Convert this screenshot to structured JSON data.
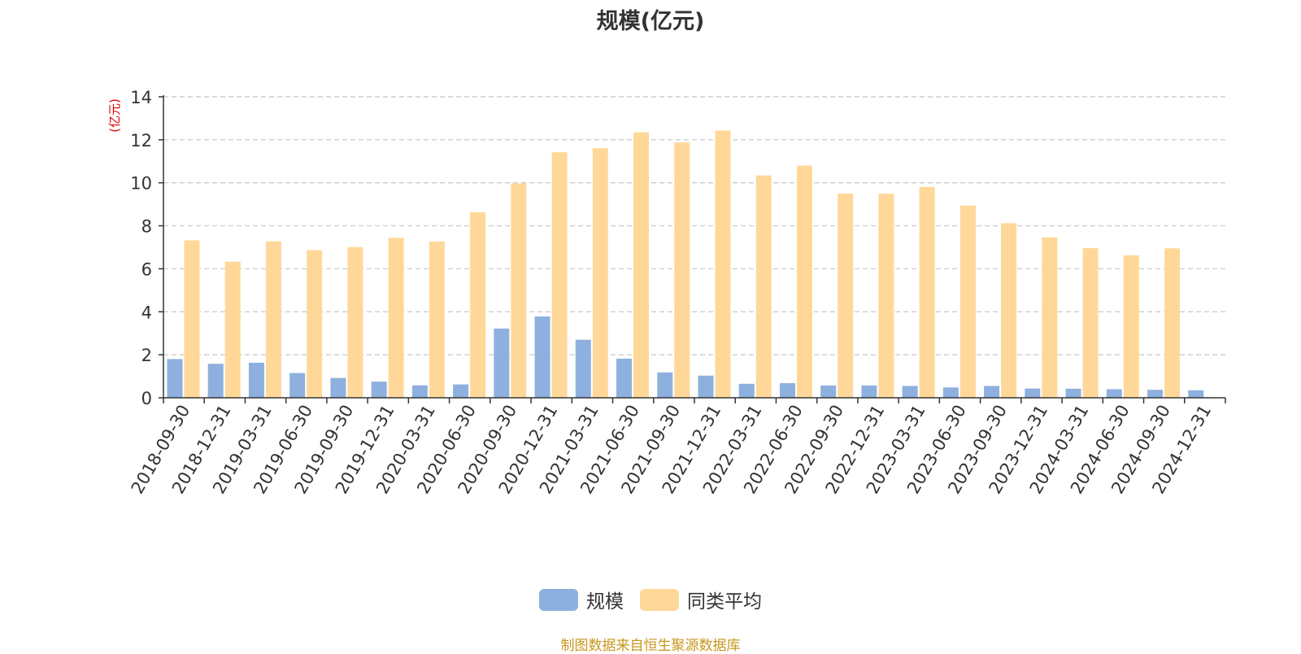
{
  "chart_data": {
    "type": "bar",
    "title": "规模(亿元)",
    "ylabel": "(亿元)",
    "ylim": [
      0,
      14
    ],
    "yticks": [
      0,
      2,
      4,
      6,
      8,
      10,
      12,
      14
    ],
    "grid": "horizontal-dashed",
    "legend_position": "bottom-center",
    "categories": [
      "2018-09-30",
      "2018-12-31",
      "2019-03-31",
      "2019-06-30",
      "2019-09-30",
      "2019-12-31",
      "2020-03-31",
      "2020-06-30",
      "2020-09-30",
      "2020-12-31",
      "2021-03-31",
      "2021-06-30",
      "2021-09-30",
      "2021-12-31",
      "2022-03-31",
      "2022-06-30",
      "2022-09-30",
      "2022-12-31",
      "2023-03-31",
      "2023-06-30",
      "2023-09-30",
      "2023-12-31",
      "2024-03-31",
      "2024-06-30",
      "2024-09-30",
      "2024-12-31"
    ],
    "series": [
      {
        "name": "规模",
        "color": "#8eb0de",
        "values": [
          1.8,
          1.58,
          1.63,
          1.15,
          0.92,
          0.75,
          0.58,
          0.62,
          3.22,
          3.78,
          2.7,
          1.82,
          1.18,
          1.03,
          0.65,
          0.68,
          0.57,
          0.57,
          0.55,
          0.48,
          0.55,
          0.43,
          0.42,
          0.4,
          0.37,
          0.35
        ]
      },
      {
        "name": "同类平均",
        "color": "#ffd899",
        "values": [
          7.32,
          6.33,
          7.28,
          6.87,
          7.01,
          7.44,
          7.27,
          8.63,
          9.97,
          11.42,
          11.61,
          12.35,
          11.88,
          12.43,
          10.34,
          10.8,
          9.5,
          9.49,
          9.81,
          8.94,
          8.12,
          7.46,
          6.96,
          6.63,
          6.95,
          null
        ]
      }
    ]
  },
  "legend": {
    "items": [
      {
        "label": "规模",
        "color": "#8eb0de"
      },
      {
        "label": "同类平均",
        "color": "#ffd899"
      }
    ]
  },
  "source_note": "制图数据来自恒生聚源数据库"
}
